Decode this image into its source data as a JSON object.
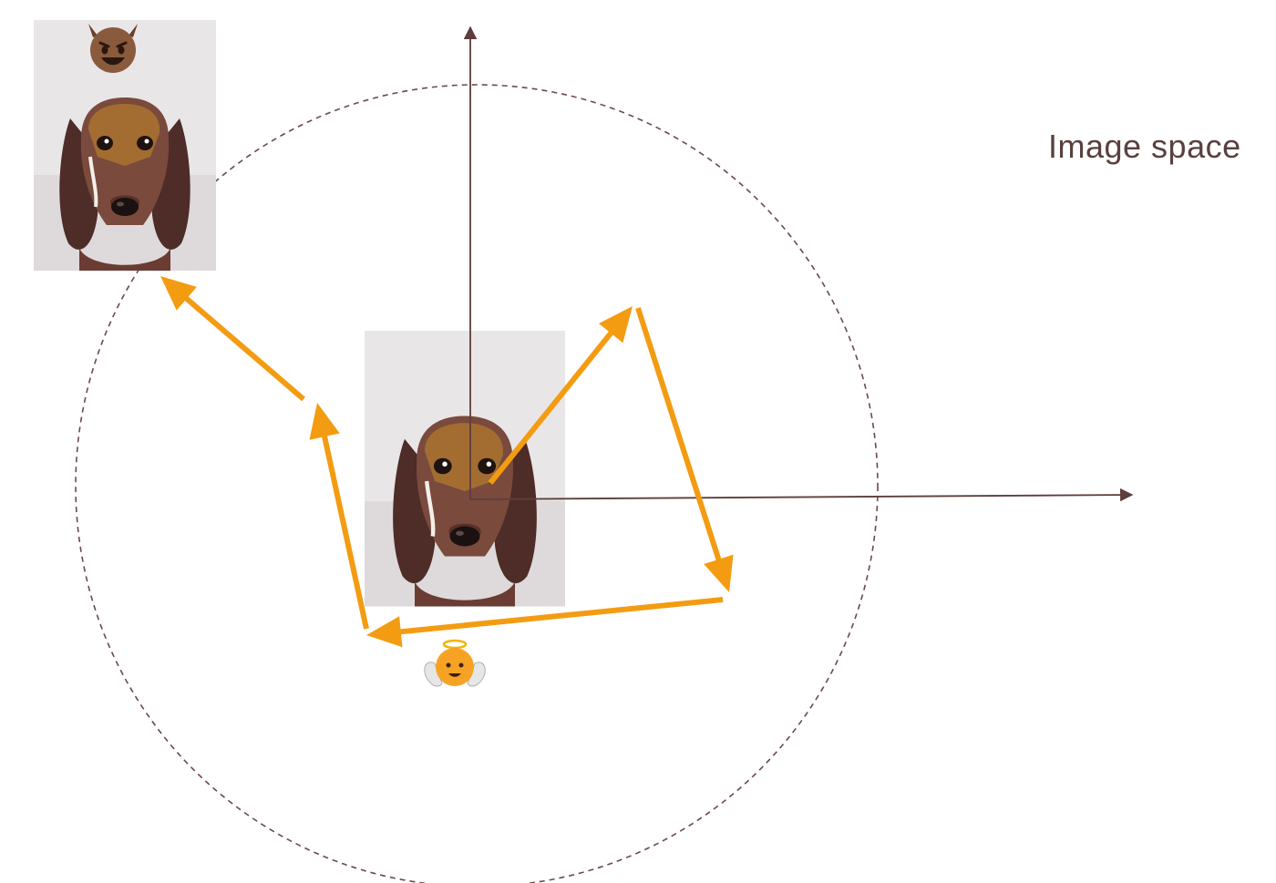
{
  "title": "Image space",
  "colors": {
    "arrow": "#f39c12",
    "axis": "#5e3d3d",
    "circle": "#6b4a4a",
    "photo_bg": "#e9e6e7",
    "dog_fur": "#7a4a3d",
    "dog_ear": "#4e2c27",
    "patch": "#c58a2a"
  },
  "icons": {
    "top_emoji": "smiling-devil-icon",
    "bottom_emoji": "baby-angel-icon"
  },
  "images": {
    "center": "dachshund-photo",
    "corner": "dachshund-photo"
  }
}
